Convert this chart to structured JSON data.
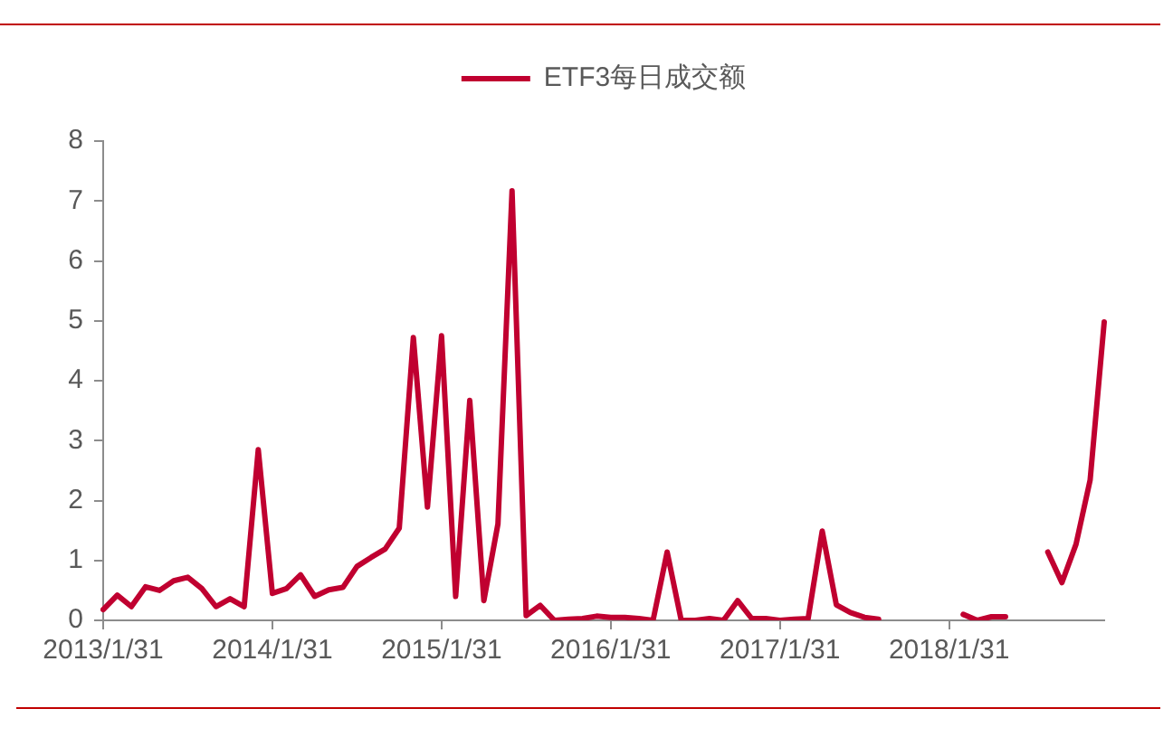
{
  "chart_data": {
    "type": "line",
    "categories": [
      "2013/1/31",
      null,
      null,
      null,
      null,
      null,
      null,
      null,
      null,
      null,
      null,
      null,
      "2014/1/31",
      null,
      null,
      null,
      null,
      null,
      null,
      null,
      null,
      null,
      null,
      null,
      "2015/1/31",
      null,
      null,
      null,
      null,
      null,
      null,
      null,
      null,
      null,
      null,
      null,
      "2016/1/31",
      null,
      null,
      null,
      null,
      null,
      null,
      null,
      null,
      null,
      null,
      null,
      "2017/1/31",
      null,
      null,
      null,
      null,
      null,
      null,
      null,
      null,
      null,
      null,
      null,
      "2018/1/31",
      null,
      null,
      null,
      null,
      null,
      null,
      null,
      null,
      null,
      null,
      null
    ],
    "series": [
      {
        "name": "ETF3每日成交额",
        "color": "#c00030",
        "values": [
          0.18,
          0.42,
          0.23,
          0.56,
          0.5,
          0.66,
          0.72,
          0.53,
          0.23,
          0.36,
          0.23,
          2.85,
          0.45,
          0.53,
          0.76,
          0.4,
          0.51,
          0.55,
          0.9,
          1.05,
          1.19,
          1.54,
          4.72,
          1.89,
          4.75,
          0.4,
          3.67,
          0.33,
          1.61,
          7.17,
          0.08,
          0.25,
          0,
          0.02,
          0.03,
          0.07,
          0.05,
          0.05,
          0.03,
          0,
          1.14,
          0,
          0,
          0.03,
          0,
          0.33,
          0.03,
          0.03,
          0,
          0.02,
          0.03,
          1.49,
          0.26,
          0.13,
          0.05,
          0.02,
          null,
          null,
          null,
          null,
          null,
          0.1,
          0,
          0.06,
          0.06,
          null,
          null,
          1.14,
          0.63,
          1.27,
          2.34,
          4.98
        ]
      }
    ],
    "ylim": [
      0,
      8
    ],
    "yticks": [
      0,
      1,
      2,
      3,
      4,
      5,
      6,
      7,
      8
    ],
    "legend": "top",
    "marker": "none",
    "line_style": "solid"
  }
}
